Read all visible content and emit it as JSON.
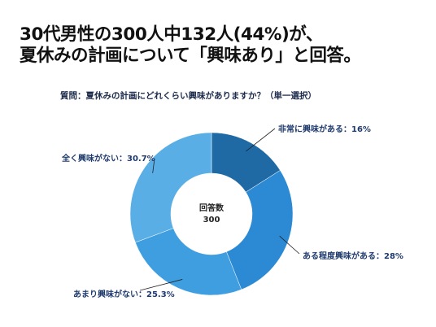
{
  "headline": {
    "line1": "30代男性の300人中132人(44%)が、",
    "line2": "夏休みの計画について「興味あり」と回答。"
  },
  "question": "質問：夏休みの計画にどれくらい興味がありますか？（単一選択）",
  "center": {
    "title": "回答数",
    "value": "300"
  },
  "chart_data": {
    "type": "pie",
    "variant": "donut",
    "title": "質問：夏休みの計画にどれくらい興味がありますか？（単一選択）",
    "total_responses": 300,
    "slices": [
      {
        "label": "非常に興味がある",
        "value": 16,
        "display": "非常に興味がある：16%",
        "color": "#1f6aa5"
      },
      {
        "label": "ある程度興味がある",
        "value": 28,
        "display": "ある程度興味がある：28%",
        "color": "#2b8ad3"
      },
      {
        "label": "あまり興味がない",
        "value": 25.3,
        "display": "あまり興味がない：25.3%",
        "color": "#3f9ee0"
      },
      {
        "label": "全く興味がない",
        "value": 30.7,
        "display": "全く興味がない：30.7%",
        "color": "#5aaee6"
      }
    ]
  }
}
